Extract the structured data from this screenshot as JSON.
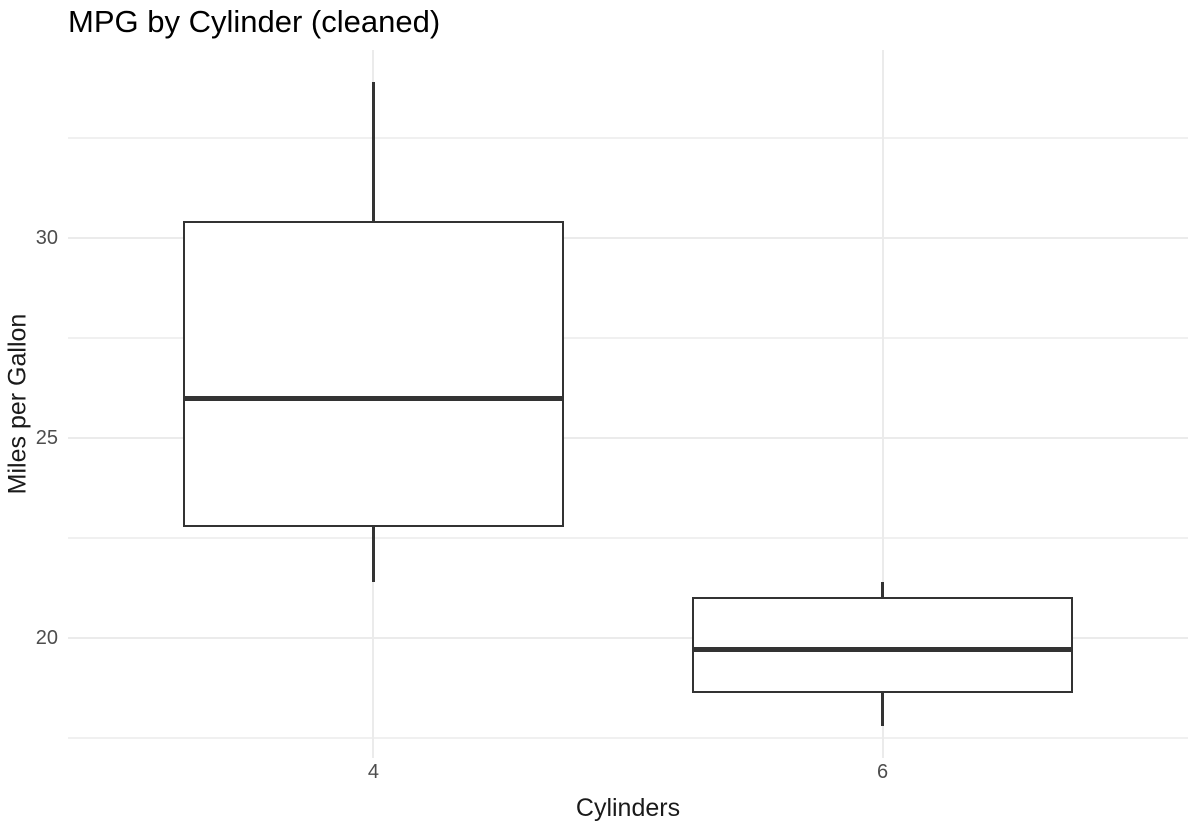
{
  "chart_data": {
    "type": "boxplot",
    "title": "MPG by Cylinder (cleaned)",
    "xlabel": "Cylinders",
    "ylabel": "Miles per Gallon",
    "categories": [
      "4",
      "6"
    ],
    "boxes": [
      {
        "category": "4",
        "min": 21.4,
        "q1": 22.8,
        "median": 26.0,
        "q3": 30.4,
        "max": 33.9,
        "outliers": []
      },
      {
        "category": "6",
        "min": 17.8,
        "q1": 18.65,
        "median": 19.7,
        "q3": 21.0,
        "max": 21.4,
        "outliers": []
      }
    ],
    "y_ticks": [
      20,
      25,
      30
    ],
    "y_minor_ticks": [
      17.5,
      22.5,
      27.5,
      32.5
    ],
    "ylim": [
      16.995,
      34.705
    ],
    "grid": true,
    "legend": false,
    "box_width_fraction": 0.75,
    "category_expand": 0.6,
    "colors": {
      "box_border": "#333333",
      "median": "#333333",
      "grid_major": "#ebebeb",
      "grid_minor": "#f0f0f0",
      "tick_label": "#4d4d4d",
      "axis_title": "#1a1a1a",
      "title": "#000000",
      "background": "#ffffff"
    }
  }
}
